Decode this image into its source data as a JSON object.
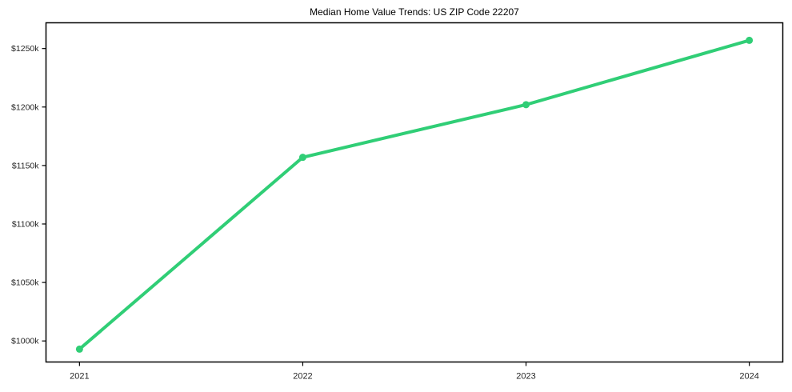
{
  "chart_data": {
    "type": "line",
    "title": "Median Home Value Trends: US ZIP Code 22207",
    "categories": [
      "2021",
      "2022",
      "2023",
      "2024"
    ],
    "x": [
      2021,
      2022,
      2023,
      2024
    ],
    "series": [
      {
        "name": "Median Home Value",
        "values": [
          993,
          1157,
          1202,
          1257
        ]
      }
    ],
    "unit": "USD thousands",
    "xlabel": "",
    "ylabel": "",
    "ytick_values": [
      1000,
      1050,
      1100,
      1150,
      1200,
      1250
    ],
    "ytick_labels": [
      "$1000k",
      "$1050k",
      "$1100k",
      "$1150k",
      "$1200k",
      "$1250k"
    ],
    "ylim": [
      982,
      1272
    ],
    "xlim": [
      2020.85,
      2024.15
    ],
    "grid": false,
    "legend_position": "none",
    "colors": {
      "line": "#30ce76",
      "marker": "#30ce76",
      "axis": "#000000",
      "tick_text": "#262626",
      "background": "#ffffff"
    }
  }
}
